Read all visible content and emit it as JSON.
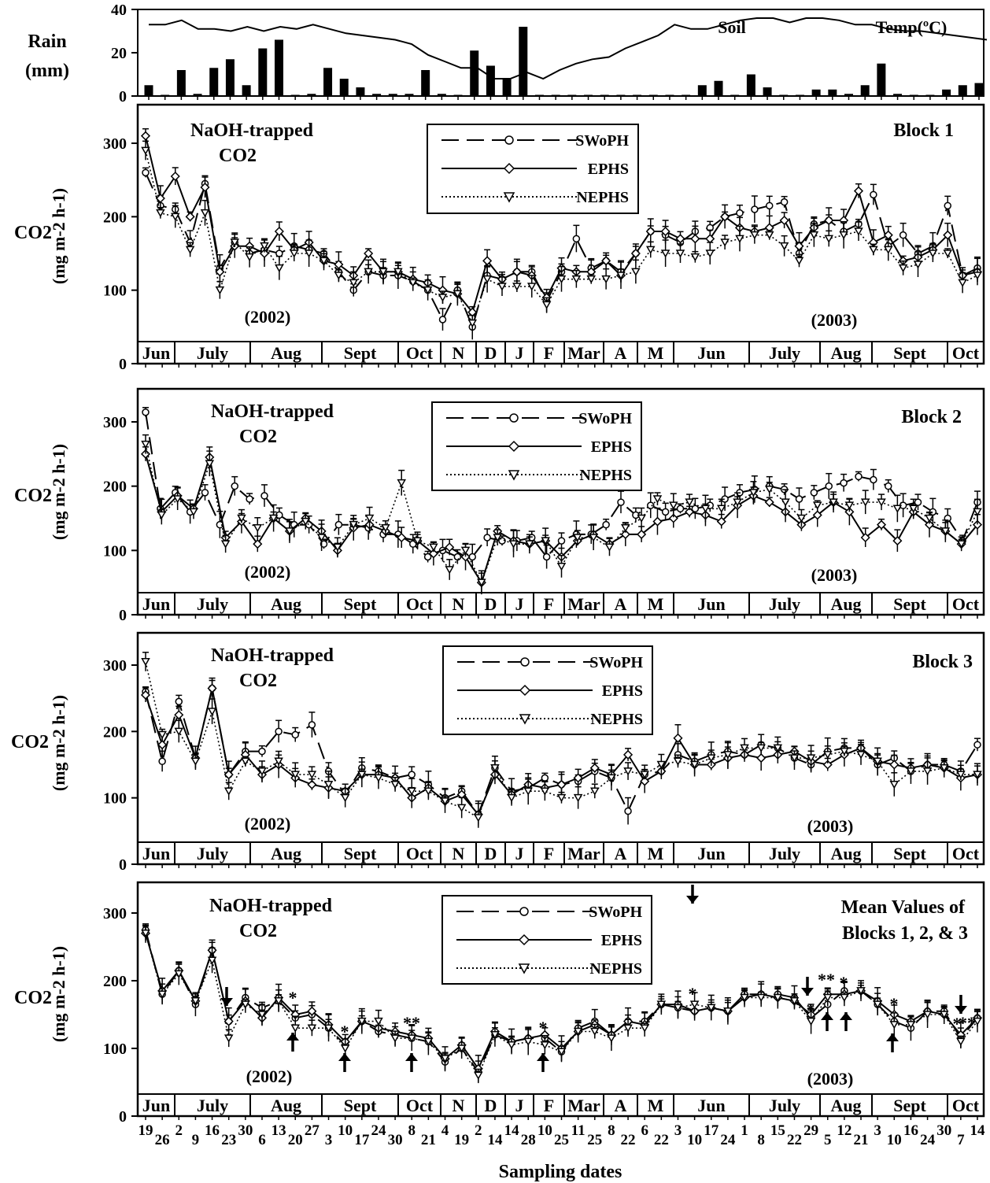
{
  "chart_data": [
    {
      "type": "bar",
      "name": "rain-soil-temp",
      "ylabel_lines": [
        "Rain",
        "(mm)"
      ],
      "temp_label_a": "Soil",
      "temp_label_b": "Temp(ºC)",
      "ylim": [
        0,
        40
      ],
      "yticks": [
        0,
        20,
        40
      ],
      "rain_values": [
        5,
        0,
        12,
        1,
        13,
        17,
        5,
        22,
        26,
        0,
        1,
        13,
        8,
        4,
        1,
        1,
        1,
        12,
        1,
        0,
        21,
        14,
        8,
        32,
        0,
        0,
        0,
        0,
        0,
        0,
        0,
        0,
        0,
        0,
        5,
        7,
        0,
        10,
        4,
        0,
        0,
        3,
        3,
        1,
        5,
        15,
        1,
        0,
        0,
        3,
        5,
        6
      ],
      "soil_temp": [
        [
          0,
          33
        ],
        [
          1,
          33
        ],
        [
          2,
          35
        ],
        [
          3,
          31
        ],
        [
          4,
          31
        ],
        [
          5,
          30
        ],
        [
          6,
          32
        ],
        [
          7,
          30
        ],
        [
          8,
          32
        ],
        [
          9,
          31
        ],
        [
          10,
          33
        ],
        [
          11,
          31
        ],
        [
          12,
          29
        ],
        [
          13,
          28
        ],
        [
          14,
          27
        ],
        [
          15,
          26
        ],
        [
          16,
          24
        ],
        [
          17,
          19
        ],
        [
          18,
          16
        ],
        [
          19,
          13
        ],
        [
          20,
          13
        ],
        [
          21,
          8
        ],
        [
          22,
          8
        ],
        [
          23,
          11
        ],
        [
          24,
          8
        ],
        [
          25,
          12
        ],
        [
          26,
          15
        ],
        [
          27,
          17
        ],
        [
          28,
          18
        ],
        [
          29,
          22
        ],
        [
          30,
          25
        ],
        [
          31,
          28
        ],
        [
          32,
          33
        ],
        [
          33,
          31
        ],
        [
          34,
          31
        ],
        [
          35,
          33
        ],
        [
          36,
          35
        ],
        [
          37,
          36
        ],
        [
          38,
          36
        ],
        [
          39,
          34
        ],
        [
          40,
          36
        ],
        [
          41,
          36
        ],
        [
          42,
          35
        ],
        [
          43,
          33
        ],
        [
          44,
          33
        ],
        [
          45,
          31
        ],
        [
          46,
          30
        ],
        [
          47,
          30
        ],
        [
          48,
          29
        ],
        [
          49,
          28
        ],
        [
          50,
          27
        ],
        [
          51,
          26
        ]
      ]
    },
    {
      "type": "line",
      "name": "block-1",
      "title_lines": [
        "NaOH-trapped",
        "CO2"
      ],
      "panel_label_lines": [
        "Block 1"
      ],
      "ylabel_main": "CO2",
      "ylabel_unit": "(mg m-2 h-1)",
      "ylim": [
        0,
        350
      ],
      "yticks": [
        0,
        100,
        200,
        300
      ],
      "year_a": "(2002)",
      "year_b": "(2003)",
      "series": [
        {
          "name": "SWoPH",
          "values": [
            260,
            215,
            210,
            165,
            245,
            130,
            165,
            150,
            155,
            150,
            160,
            155,
            150,
            125,
            100,
            125,
            120,
            120,
            112,
            100,
            60,
            100,
            50,
            120,
            115,
            125,
            125,
            85,
            125,
            170,
            130,
            140,
            125,
            150,
            180,
            175,
            165,
            180,
            185,
            200,
            205,
            210,
            215,
            220,
            150,
            190,
            195,
            180,
            190,
            230,
            160,
            175,
            150,
            160,
            215,
            120,
            130
          ]
        },
        {
          "name": "EPHS",
          "values": [
            310,
            225,
            255,
            200,
            240,
            125,
            160,
            160,
            150,
            180,
            155,
            165,
            140,
            135,
            120,
            150,
            125,
            125,
            115,
            110,
            100,
            95,
            70,
            140,
            115,
            125,
            120,
            90,
            130,
            125,
            125,
            140,
            120,
            150,
            180,
            180,
            170,
            170,
            170,
            200,
            185,
            180,
            185,
            195,
            160,
            185,
            195,
            195,
            235,
            165,
            175,
            140,
            145,
            155,
            175,
            120,
            125
          ]
        },
        {
          "name": "NEPHS",
          "values": [
            290,
            205,
            200,
            155,
            205,
            100,
            165,
            145,
            160,
            130,
            150,
            150,
            140,
            120,
            110,
            125,
            125,
            125,
            110,
            100,
            90,
            95,
            55,
            115,
            105,
            105,
            105,
            80,
            115,
            115,
            115,
            115,
            120,
            125,
            155,
            150,
            150,
            145,
            150,
            165,
            170,
            175,
            175,
            160,
            140,
            175,
            170,
            175,
            180,
            155,
            155,
            130,
            135,
            150,
            150,
            110,
            120
          ]
        }
      ],
      "annotations": [],
      "arrows_down": [],
      "arrows_up": []
    },
    {
      "type": "line",
      "name": "block-2",
      "title_lines": [
        "NaOH-trapped",
        "CO2"
      ],
      "panel_label_lines": [
        "Block 2"
      ],
      "ylabel_main": "CO2",
      "ylabel_unit": "(mg m-2 h-1)",
      "ylim": [
        0,
        350
      ],
      "yticks": [
        0,
        100,
        200,
        300
      ],
      "year_a": "(2002)",
      "year_b": "(2003)",
      "series": [
        {
          "name": "SWoPH",
          "values": [
            315,
            165,
            190,
            160,
            190,
            140,
            200,
            180,
            185,
            155,
            140,
            140,
            110,
            140,
            140,
            135,
            125,
            125,
            110,
            90,
            100,
            90,
            90,
            120,
            115,
            115,
            120,
            90,
            115,
            125,
            125,
            140,
            175,
            155,
            170,
            160,
            165,
            165,
            170,
            180,
            190,
            195,
            200,
            195,
            180,
            190,
            200,
            205,
            215,
            210,
            200,
            170,
            175,
            160,
            150,
            115,
            175
          ]
        },
        {
          "name": "EPHS",
          "values": [
            250,
            160,
            185,
            165,
            245,
            120,
            145,
            110,
            150,
            130,
            150,
            130,
            100,
            135,
            140,
            130,
            120,
            115,
            95,
            105,
            90,
            50,
            130,
            115,
            110,
            115,
            90,
            115,
            125,
            110,
            125,
            125,
            145,
            150,
            160,
            155,
            145,
            170,
            185,
            175,
            160,
            140,
            155,
            175,
            160,
            120,
            140,
            115,
            160,
            140,
            130,
            110,
            140
          ]
        },
        {
          "name": "NEPHS",
          "values": [
            265,
            155,
            180,
            160,
            235,
            110,
            150,
            135,
            150,
            130,
            145,
            120,
            105,
            140,
            150,
            135,
            205,
            115,
            105,
            70,
            100,
            50,
            120,
            110,
            110,
            115,
            75,
            120,
            120,
            105,
            135,
            150,
            180,
            170,
            175,
            165,
            165,
            175,
            190,
            195,
            175,
            150,
            170,
            175,
            170,
            175,
            175,
            165,
            165,
            150,
            130,
            110,
            160
          ]
        }
      ],
      "annotations": [],
      "arrows_down": [],
      "arrows_up": []
    },
    {
      "type": "line",
      "name": "block-3",
      "title_lines": [
        "NaOH-trapped",
        "CO2"
      ],
      "panel_label_lines": [
        "Block 3"
      ],
      "ylabel_main": "CO2",
      "ylabel_unit": "(mg m-2 h-1)",
      "ylim": [
        0,
        350
      ],
      "yticks": [
        0,
        100,
        200,
        300
      ],
      "year_a": "(2002)",
      "year_b": "(2003)",
      "series": [
        {
          "name": "SWoPH",
          "values": [
            260,
            155,
            245,
            160,
            265,
            135,
            170,
            170,
            200,
            195,
            210,
            140,
            105,
            145,
            140,
            130,
            135,
            120,
            100,
            110,
            75,
            145,
            110,
            115,
            130,
            120,
            125,
            140,
            130,
            80,
            135,
            140,
            165,
            155,
            165,
            170,
            165,
            180,
            175,
            160,
            150,
            170,
            175,
            175,
            150,
            160,
            140,
            150,
            150,
            140,
            180
          ]
        },
        {
          "name": "EPHS",
          "values": [
            255,
            180,
            225,
            160,
            265,
            135,
            165,
            135,
            150,
            130,
            120,
            115,
            110,
            135,
            135,
            130,
            100,
            115,
            95,
            105,
            75,
            135,
            105,
            120,
            115,
            120,
            130,
            145,
            135,
            165,
            125,
            140,
            190,
            150,
            150,
            160,
            165,
            160,
            165,
            170,
            155,
            150,
            165,
            175,
            155,
            150,
            145,
            150,
            145,
            130,
            135
          ]
        },
        {
          "name": "NEPHS",
          "values": [
            305,
            195,
            200,
            155,
            230,
            110,
            155,
            140,
            155,
            135,
            135,
            120,
            100,
            135,
            130,
            120,
            110,
            110,
            95,
            85,
            70,
            145,
            100,
            110,
            110,
            100,
            100,
            110,
            130,
            140,
            135,
            150,
            155,
            150,
            160,
            165,
            175,
            175,
            175,
            160,
            160,
            165,
            170,
            165,
            155,
            120,
            140,
            140,
            145,
            135,
            135
          ]
        }
      ],
      "annotations": [],
      "arrows_down": [],
      "arrows_up": []
    },
    {
      "type": "line",
      "name": "mean-values",
      "title_lines": [
        "NaOH-trapped",
        "CO2"
      ],
      "panel_label_lines": [
        "Mean Values of",
        "Blocks 1, 2, & 3"
      ],
      "ylabel_main": "CO2",
      "ylabel_unit": "(mg m-2 h-1)",
      "ylim": [
        0,
        350
      ],
      "yticks": [
        0,
        100,
        200,
        300
      ],
      "year_a": "(2002)",
      "year_b": "(2003)",
      "series": [
        {
          "name": "SWoPH",
          "values": [
            275,
            180,
            215,
            165,
            245,
            140,
            175,
            160,
            170,
            145,
            150,
            130,
            105,
            140,
            125,
            120,
            115,
            110,
            80,
            100,
            65,
            120,
            110,
            115,
            115,
            95,
            130,
            140,
            120,
            140,
            140,
            165,
            160,
            155,
            160,
            155,
            180,
            180,
            180,
            175,
            145,
            165,
            185,
            185,
            165,
            140,
            130,
            155,
            155,
            115,
            145
          ]
        },
        {
          "name": "EPHS",
          "values": [
            270,
            185,
            215,
            170,
            245,
            140,
            170,
            145,
            175,
            150,
            155,
            135,
            110,
            140,
            130,
            125,
            120,
            115,
            85,
            105,
            70,
            125,
            110,
            115,
            120,
            100,
            125,
            135,
            120,
            140,
            135,
            165,
            165,
            155,
            160,
            155,
            175,
            180,
            175,
            170,
            150,
            180,
            180,
            185,
            170,
            150,
            140,
            155,
            150,
            120,
            145
          ]
        },
        {
          "name": "NEPHS",
          "values": [
            270,
            180,
            210,
            170,
            230,
            115,
            165,
            150,
            170,
            130,
            130,
            130,
            100,
            140,
            140,
            115,
            115,
            110,
            85,
            100,
            60,
            120,
            105,
            110,
            105,
            95,
            125,
            125,
            115,
            130,
            130,
            165,
            160,
            165,
            160,
            155,
            175,
            175,
            175,
            170,
            140,
            175,
            175,
            185,
            165,
            135,
            135,
            150,
            150,
            110,
            140
          ]
        }
      ],
      "annotations": [
        "*",
        "*",
        "**",
        "*",
        "*",
        "*",
        "**",
        "*",
        "*",
        "*",
        "**"
      ],
      "arrows_down": [
        "down-1",
        "down-2",
        "down-3",
        "down-4"
      ],
      "arrows_up": [
        "up-1",
        "up-2",
        "up-3",
        "up-4",
        "up-5",
        "up-6",
        "up-7"
      ]
    }
  ],
  "legend": {
    "swoph": "SWoPH",
    "ephs": "EPHS",
    "nephs": "NEPHS"
  },
  "months": [
    "Jun",
    "July",
    "Aug",
    "Sept",
    "Oct",
    "N",
    "D",
    "J",
    "F",
    "Mar",
    "A",
    "M",
    "Jun",
    "July",
    "Aug",
    "Sept",
    "Oct"
  ],
  "date_ticks": [
    "19",
    "26",
    "2",
    "9",
    "16",
    "23",
    "30",
    "6",
    "13",
    "20",
    "27",
    "3",
    "10",
    "17",
    "24",
    "30",
    "8",
    "21",
    "4",
    "19",
    "2",
    "14",
    "14",
    "28",
    "10",
    "25",
    "11",
    "25",
    "8",
    "22",
    "6",
    "22",
    "3",
    "10",
    "17",
    "24",
    "1",
    "8",
    "15",
    "22",
    "29",
    "5",
    "12",
    "21",
    "3",
    "10",
    "16",
    "24",
    "30",
    "7",
    "14"
  ],
  "xlabel": "Sampling dates"
}
